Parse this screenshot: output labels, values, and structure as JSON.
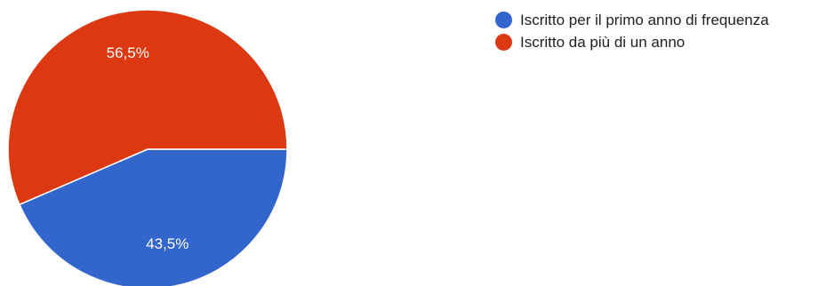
{
  "chart_data": {
    "type": "pie",
    "title": "",
    "slices": [
      {
        "label": "Iscritto per il primo anno di frequenza",
        "value": 43.5,
        "value_label": "43,5%",
        "color": "#3366cc"
      },
      {
        "label": "Iscritto da più di un anno",
        "value": 56.5,
        "value_label": "56,5%",
        "color": "#dc3912"
      }
    ],
    "legend_position": "right"
  }
}
